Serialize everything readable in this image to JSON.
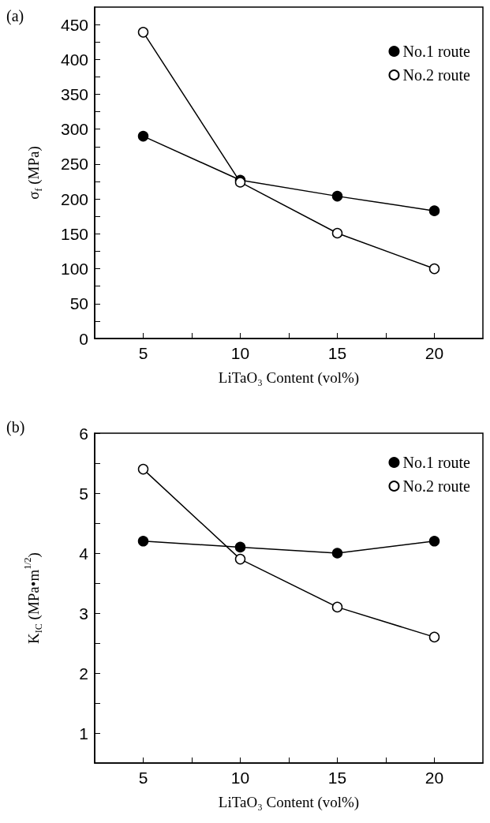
{
  "chart_data": [
    {
      "type": "line",
      "title": "(a)",
      "xlabel": "LiTaO₃ Content (vol%)",
      "ylabel": "σ$_{f}$ (MPa)",
      "x": [
        5,
        10,
        15,
        20
      ],
      "series": [
        {
          "name": "No.1 route",
          "color": "#000000",
          "values": [
            290,
            227,
            204,
            183
          ]
        },
        {
          "name": "No.2 route",
          "color": "#ffffff",
          "values": [
            439,
            224,
            151,
            100
          ]
        }
      ],
      "xlim": [
        2.5,
        22.5
      ],
      "xticks": [
        5,
        {
          "value": 7.5,
          "label": null
        },
        10,
        {
          "value": 12.5,
          "label": null
        },
        15,
        {
          "value": 17.5,
          "label": null
        },
        20
      ],
      "ylim": [
        0,
        475
      ],
      "yticks": [
        0,
        {
          "value": 25,
          "label": null
        },
        50,
        {
          "value": 75,
          "label": null
        },
        100,
        {
          "value": 125,
          "label": null
        },
        150,
        {
          "value": 175,
          "label": null
        },
        200,
        {
          "value": 225,
          "label": null
        },
        250,
        {
          "value": 275,
          "label": null
        },
        300,
        {
          "value": 325,
          "label": null
        },
        350,
        {
          "value": 375,
          "label": null
        },
        400,
        {
          "value": 425,
          "label": null
        },
        450
      ],
      "legend": "top right",
      "marker": "circle",
      "line_style": "solid",
      "grid": false
    },
    {
      "type": "line",
      "title": "(b)",
      "xlabel": "LiTaO₃ Content (vol%)",
      "ylabel": "K$_{IC}$ (MPa•m$^{1/2}$)",
      "x": [
        5,
        10,
        15,
        20
      ],
      "series": [
        {
          "name": "No.1 route",
          "color": "#000000",
          "values": [
            4.2,
            4.1,
            4.0,
            4.2
          ]
        },
        {
          "name": "No.2 route",
          "color": "#ffffff",
          "values": [
            5.4,
            3.9,
            3.1,
            2.6
          ]
        }
      ],
      "xlim": [
        2.5,
        22.5
      ],
      "xticks": [
        5,
        {
          "value": 7.5,
          "label": null
        },
        10,
        {
          "value": 12.5,
          "label": null
        },
        15,
        {
          "value": 17.5,
          "label": null
        },
        20
      ],
      "ylim": [
        0.5,
        6
      ],
      "yticks": [
        1,
        {
          "value": 1.5,
          "label": null
        },
        2,
        {
          "value": 2.5,
          "label": null
        },
        3,
        {
          "value": 3.5,
          "label": null
        },
        4,
        {
          "value": 4.5,
          "label": null
        },
        5,
        {
          "value": 5.5,
          "label": null
        },
        6
      ],
      "legend": "top right",
      "marker": "circle",
      "line_style": "solid",
      "grid": false
    }
  ]
}
